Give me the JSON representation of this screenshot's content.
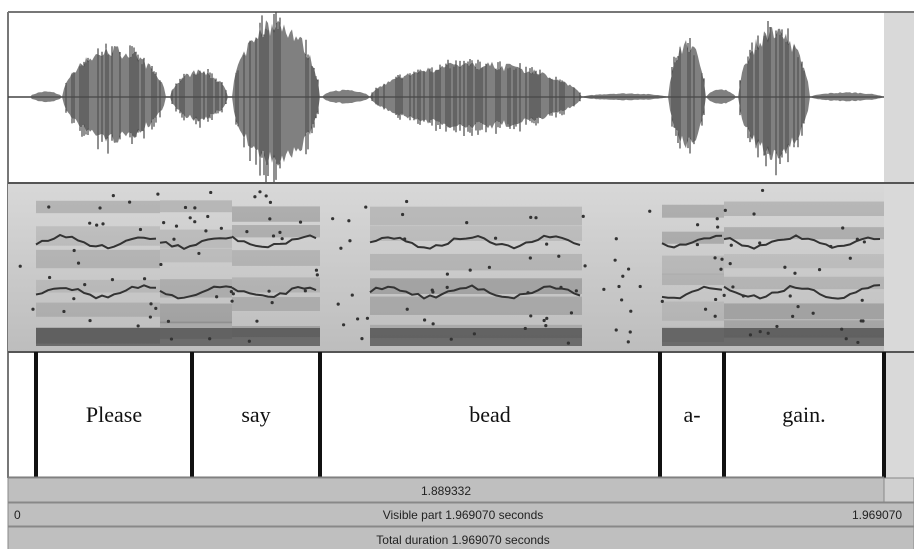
{
  "textgrid": {
    "intervals": [
      "Please",
      "say",
      "bead",
      "a-",
      "gain."
    ]
  },
  "status": {
    "cursor_time": "1.889332",
    "visible_start": "0",
    "visible_part": "Visible part 1.969070 seconds",
    "visible_end": "1.969070",
    "total_duration": "Total duration 1.969070 seconds"
  }
}
